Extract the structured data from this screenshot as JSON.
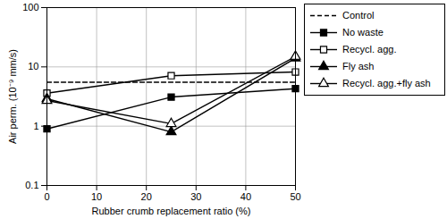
{
  "chart_data": {
    "type": "line",
    "x_label": "Rubber crumb replacement ratio (%)",
    "y_label": "Air perm. (10⁻⁹ mm/s)",
    "x": [
      0,
      25,
      50
    ],
    "series": [
      {
        "name": "Control",
        "color": "#000000",
        "line_style": "dashed",
        "marker": "none",
        "values": [
          5.5,
          5.5,
          5.5
        ]
      },
      {
        "name": "No waste",
        "color": "#000000",
        "line_style": "solid",
        "marker": "square",
        "values": [
          0.9,
          3.1,
          4.3
        ]
      },
      {
        "name": "Recycl. agg.",
        "color": "#000000",
        "line_style": "solid",
        "marker": "square-open",
        "values": [
          3.6,
          7.1,
          8.2
        ]
      },
      {
        "name": "Fly ash",
        "color": "#000000",
        "line_style": "solid",
        "marker": "triangle",
        "values": [
          2.9,
          0.8,
          14
        ]
      },
      {
        "name": "Recycl. agg.+fly ash",
        "color": "#000000",
        "line_style": "solid",
        "marker": "triangle-open",
        "values": [
          2.7,
          1.1,
          15
        ]
      }
    ],
    "xlim": [
      0,
      50
    ],
    "xticks": [
      0,
      10,
      20,
      30,
      40,
      50
    ],
    "ylim": [
      0.1,
      100
    ],
    "yticks": [
      0.1,
      1,
      10,
      100
    ],
    "log": "y",
    "grid": true,
    "legend": "right"
  }
}
